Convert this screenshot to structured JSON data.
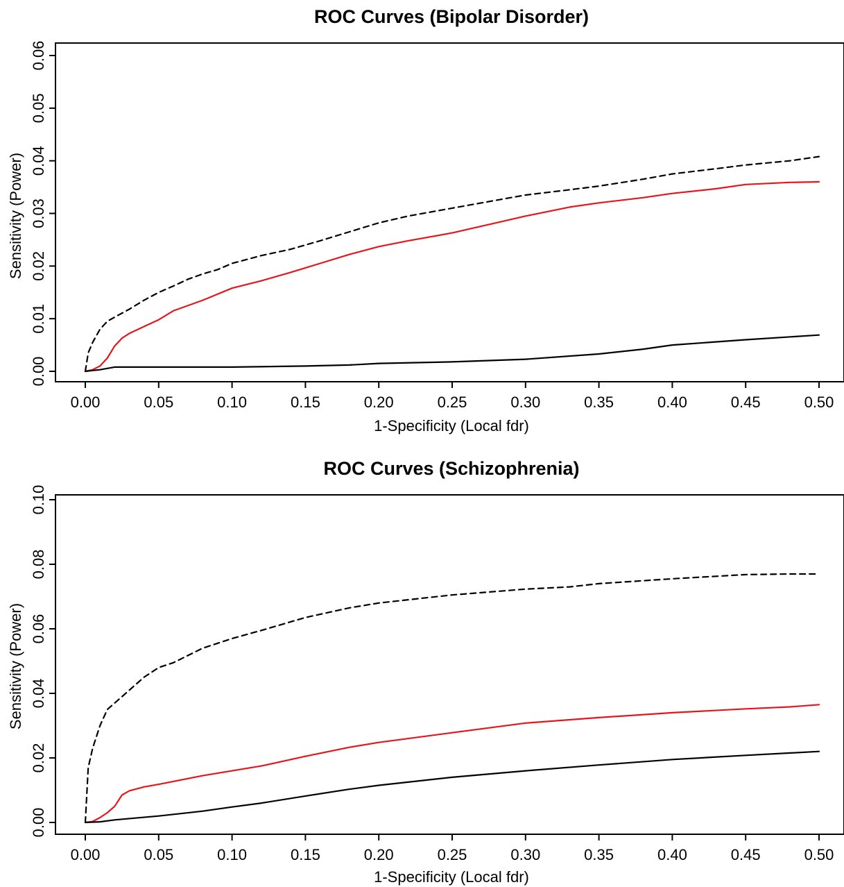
{
  "chart_data": [
    {
      "type": "line",
      "title": "ROC Curves (Bipolar Disorder)",
      "xlabel": "1-Specificity (Local fdr)",
      "ylabel": "Sensitivity (Power)",
      "xlim": [
        0,
        0.5
      ],
      "ylim": [
        0,
        0.06
      ],
      "xticks": [
        "0.00",
        "0.05",
        "0.10",
        "0.15",
        "0.20",
        "0.25",
        "0.30",
        "0.35",
        "0.40",
        "0.45",
        "0.50"
      ],
      "yticks": [
        "0.00",
        "0.01",
        "0.02",
        "0.03",
        "0.04",
        "0.05",
        "0.06"
      ],
      "grid": false,
      "series": [
        {
          "style": "dashed",
          "color": "#000000",
          "x": [
            0,
            0.002,
            0.005,
            0.01,
            0.015,
            0.02,
            0.03,
            0.04,
            0.05,
            0.06,
            0.07,
            0.08,
            0.09,
            0.1,
            0.12,
            0.14,
            0.16,
            0.18,
            0.2,
            0.22,
            0.25,
            0.28,
            0.3,
            0.33,
            0.35,
            0.38,
            0.4,
            0.43,
            0.45,
            0.48,
            0.5
          ],
          "y": [
            0.0,
            0.0035,
            0.0055,
            0.008,
            0.0095,
            0.0103,
            0.0118,
            0.0135,
            0.015,
            0.0162,
            0.0175,
            0.0185,
            0.0193,
            0.0205,
            0.022,
            0.0232,
            0.0248,
            0.0265,
            0.0282,
            0.0295,
            0.031,
            0.0325,
            0.0335,
            0.0345,
            0.0352,
            0.0365,
            0.0375,
            0.0385,
            0.0392,
            0.04,
            0.0408
          ]
        },
        {
          "style": "solid",
          "color": "#e8141b",
          "x": [
            0,
            0.005,
            0.01,
            0.015,
            0.02,
            0.025,
            0.03,
            0.04,
            0.05,
            0.06,
            0.08,
            0.1,
            0.12,
            0.14,
            0.16,
            0.18,
            0.2,
            0.22,
            0.25,
            0.28,
            0.3,
            0.33,
            0.35,
            0.38,
            0.4,
            0.43,
            0.45,
            0.48,
            0.5
          ],
          "y": [
            0.0,
            0.0003,
            0.001,
            0.0025,
            0.0048,
            0.0063,
            0.0072,
            0.0085,
            0.0098,
            0.0115,
            0.0135,
            0.0158,
            0.0172,
            0.0188,
            0.0205,
            0.0222,
            0.0237,
            0.0248,
            0.0263,
            0.0282,
            0.0295,
            0.0312,
            0.032,
            0.033,
            0.0338,
            0.0347,
            0.0355,
            0.0359,
            0.036
          ]
        },
        {
          "style": "solid",
          "color": "#000000",
          "x": [
            0,
            0.01,
            0.02,
            0.05,
            0.1,
            0.15,
            0.18,
            0.2,
            0.25,
            0.3,
            0.35,
            0.38,
            0.4,
            0.45,
            0.5
          ],
          "y": [
            0.0,
            0.0003,
            0.0008,
            0.0008,
            0.0008,
            0.001,
            0.0012,
            0.0015,
            0.0018,
            0.0023,
            0.0033,
            0.0042,
            0.005,
            0.006,
            0.0069
          ]
        }
      ]
    },
    {
      "type": "line",
      "title": "ROC Curves (Schizophrenia)",
      "xlabel": "1-Specificity (Local fdr)",
      "ylabel": "Sensitivity (Power)",
      "xlim": [
        0,
        0.5
      ],
      "ylim": [
        0,
        0.1
      ],
      "xticks": [
        "0.00",
        "0.05",
        "0.10",
        "0.15",
        "0.20",
        "0.25",
        "0.30",
        "0.35",
        "0.40",
        "0.45",
        "0.50"
      ],
      "yticks": [
        "0.00",
        "0.02",
        "0.04",
        "0.06",
        "0.08",
        "0.10"
      ],
      "grid": false,
      "series": [
        {
          "style": "dashed",
          "color": "#000000",
          "x": [
            0,
            0.002,
            0.005,
            0.01,
            0.015,
            0.02,
            0.03,
            0.04,
            0.05,
            0.06,
            0.08,
            0.1,
            0.12,
            0.15,
            0.18,
            0.2,
            0.25,
            0.3,
            0.33,
            0.35,
            0.4,
            0.45,
            0.48,
            0.5
          ],
          "y": [
            0.0,
            0.017,
            0.023,
            0.03,
            0.035,
            0.037,
            0.041,
            0.045,
            0.048,
            0.0495,
            0.054,
            0.057,
            0.0595,
            0.0635,
            0.0665,
            0.068,
            0.0705,
            0.0723,
            0.073,
            0.074,
            0.0755,
            0.0768,
            0.077,
            0.077
          ]
        },
        {
          "style": "solid",
          "color": "#e8141b",
          "x": [
            0,
            0.005,
            0.01,
            0.015,
            0.02,
            0.025,
            0.03,
            0.04,
            0.05,
            0.06,
            0.08,
            0.1,
            0.12,
            0.15,
            0.18,
            0.2,
            0.25,
            0.3,
            0.35,
            0.4,
            0.45,
            0.48,
            0.5
          ],
          "y": [
            0.0,
            0.0003,
            0.0015,
            0.003,
            0.005,
            0.0085,
            0.0098,
            0.011,
            0.0118,
            0.0127,
            0.0145,
            0.016,
            0.0175,
            0.0205,
            0.0233,
            0.0248,
            0.0278,
            0.0308,
            0.0325,
            0.034,
            0.0352,
            0.0358,
            0.0365
          ]
        },
        {
          "style": "solid",
          "color": "#000000",
          "x": [
            0,
            0.01,
            0.02,
            0.05,
            0.08,
            0.1,
            0.12,
            0.15,
            0.18,
            0.2,
            0.25,
            0.3,
            0.35,
            0.4,
            0.45,
            0.5
          ],
          "y": [
            0.0,
            0.0002,
            0.0008,
            0.002,
            0.0035,
            0.0048,
            0.006,
            0.0082,
            0.0103,
            0.0115,
            0.014,
            0.016,
            0.0178,
            0.0195,
            0.0208,
            0.022
          ]
        }
      ]
    }
  ]
}
